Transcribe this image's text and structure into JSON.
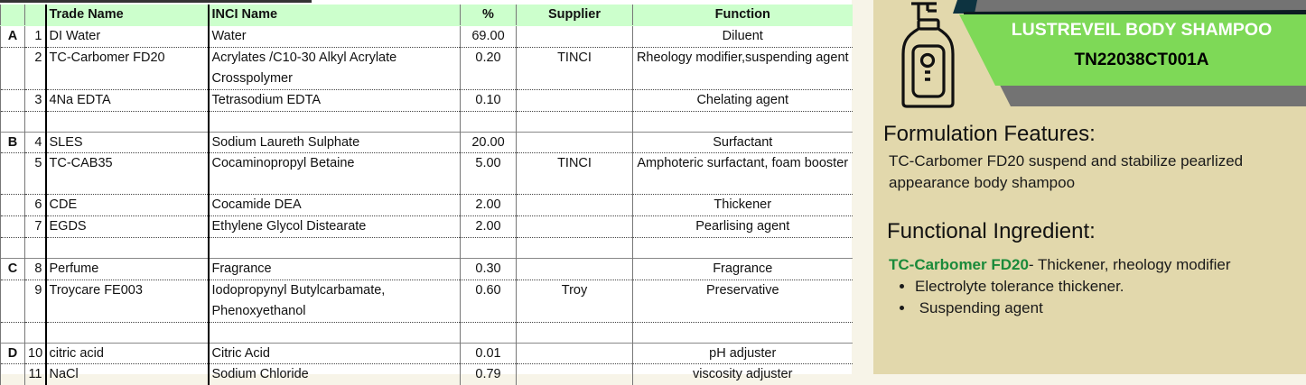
{
  "table": {
    "headers": [
      "",
      "",
      "Trade Name",
      "INCI Name",
      "%",
      "Supplier",
      "Function"
    ],
    "rows": [
      {
        "phase": "A",
        "no": "1",
        "trade": "DI Water",
        "inci": "Water",
        "pct": "69.00",
        "supplier": "",
        "function": "Diluent",
        "lines": 1
      },
      {
        "phase": "",
        "no": "2",
        "trade": "TC-Carbomer FD20",
        "inci": "Acrylates /C10-30 Alkyl Acrylate Crosspolymer",
        "pct": "0.20",
        "supplier": "TINCI",
        "function": "Rheology modifier,suspending agent",
        "lines": 2
      },
      {
        "phase": "",
        "no": "3",
        "trade": "4Na EDTA",
        "inci": "Tetrasodium EDTA",
        "pct": "0.10",
        "supplier": "",
        "function": "Chelating agent",
        "lines": 1
      },
      {
        "phase": "",
        "no": "",
        "trade": "",
        "inci": "",
        "pct": "",
        "supplier": "",
        "function": "",
        "lines": 1
      },
      {
        "phase": "B",
        "no": "4",
        "trade": "SLES",
        "inci": "Sodium Laureth Sulphate",
        "pct": "20.00",
        "supplier": "",
        "function": "Surfactant",
        "lines": 1,
        "group": true
      },
      {
        "phase": "",
        "no": "5",
        "trade": "TC-CAB35",
        "inci": "Cocaminopropyl Betaine",
        "pct": "5.00",
        "supplier": "TINCI",
        "function": "Amphoteric surfactant, foam booster",
        "lines": 2
      },
      {
        "phase": "",
        "no": "6",
        "trade": "CDE",
        "inci": "Cocamide DEA",
        "pct": "2.00",
        "supplier": "",
        "function": "Thickener",
        "lines": 1
      },
      {
        "phase": "",
        "no": "7",
        "trade": "EGDS",
        "inci": "Ethylene Glycol Distearate",
        "pct": "2.00",
        "supplier": "",
        "function": "Pearlising agent",
        "lines": 1
      },
      {
        "phase": "",
        "no": "",
        "trade": "",
        "inci": "",
        "pct": "",
        "supplier": "",
        "function": "",
        "lines": 1
      },
      {
        "phase": "C",
        "no": "8",
        "trade": "Perfume",
        "inci": "Fragrance",
        "pct": "0.30",
        "supplier": "",
        "function": "Fragrance",
        "lines": 1,
        "group": true
      },
      {
        "phase": "",
        "no": "9",
        "trade": "Troycare FE003",
        "inci": "Iodopropynyl Butylcarbamate, Phenoxyethanol",
        "pct": "0.60",
        "supplier": "Troy",
        "function": "Preservative",
        "lines": 2
      },
      {
        "phase": "",
        "no": "",
        "trade": "",
        "inci": "",
        "pct": "",
        "supplier": "",
        "function": "",
        "lines": 1
      },
      {
        "phase": "D",
        "no": "10",
        "trade": "citric acid",
        "inci": "Citric Acid",
        "pct": "0.01",
        "supplier": "",
        "function": "pH adjuster",
        "lines": 1,
        "group": true
      },
      {
        "phase": "",
        "no": "11",
        "trade": "NaCl",
        "inci": "Sodium Chloride",
        "pct": "0.79",
        "supplier": "",
        "function": "viscosity adjuster",
        "lines": 1
      }
    ]
  },
  "panel": {
    "icon": "pump-bottle-icon",
    "product_name": "LUSTREVEIL BODY SHAMPOO",
    "product_code": "TN22038CT001A",
    "features_heading": "Formulation Features:",
    "features_text": "TC-Carbomer FD20 suspend and stabilize pearlized appearance body shampoo",
    "ingredient_heading": "Functional Ingredient:",
    "ingredient_name": "TC-Carbomer FD20",
    "ingredient_desc": "- Thickener, rheology modifier",
    "bullets": [
      "Electrolyte tolerance thickener.",
      " Suspending agent"
    ],
    "colors": {
      "header_green": "#ccffcc",
      "banner_green": "#7ed957",
      "banner_gray": "#737373",
      "panel_bg": "#e2d8ac",
      "ingredient_green": "#1a8a3a"
    }
  }
}
